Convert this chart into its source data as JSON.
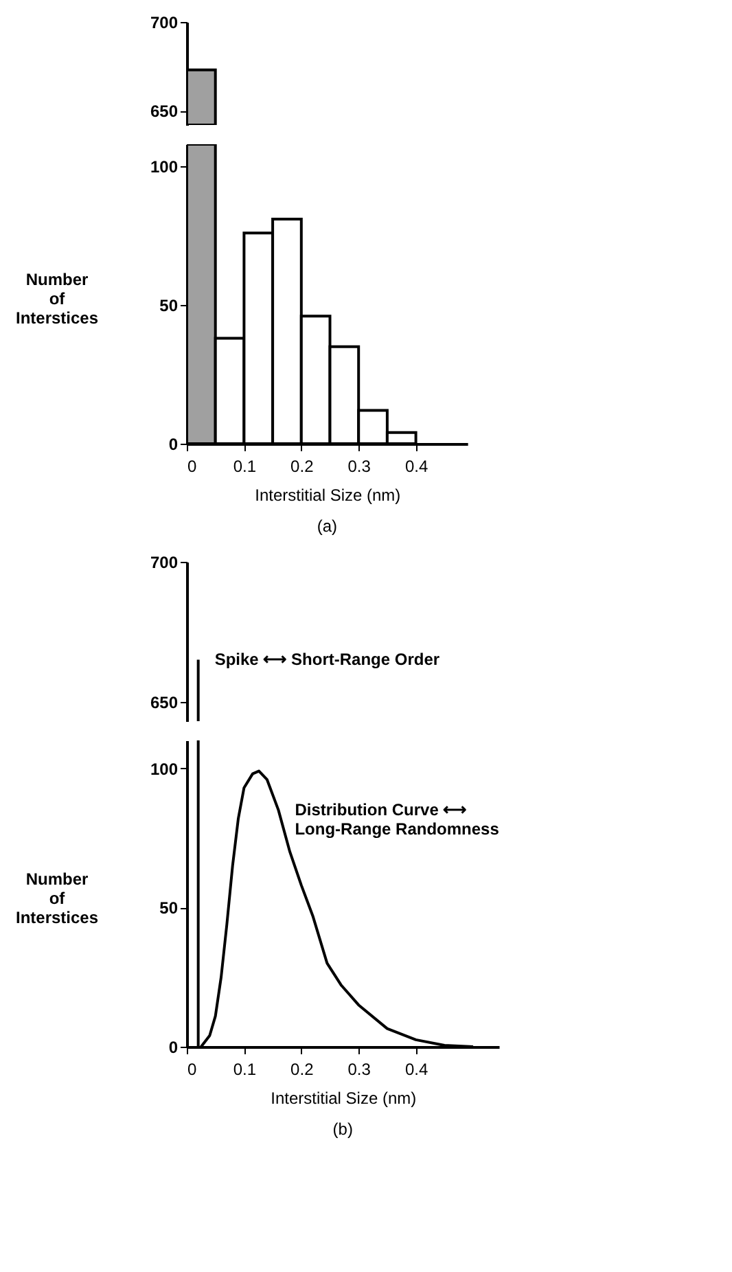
{
  "chart_data": [
    {
      "type": "histogram",
      "bins": [
        0,
        0.05
      ],
      "values": [
        673
      ],
      "colors": [
        "#a0a0a0"
      ],
      "xlim": [
        0,
        0.4
      ],
      "xticks": [
        0,
        0.1,
        0.2,
        0.3,
        0.4
      ],
      "ylim": [
        642,
        700
      ],
      "yticks": [
        650,
        700
      ],
      "tick_labels": "y"
    },
    {
      "type": "histogram",
      "bins": [
        0,
        0.05,
        0.1,
        0.15,
        0.2,
        0.25,
        0.3,
        0.35,
        0.4
      ],
      "values": [
        108,
        38,
        76,
        81,
        46,
        35,
        12,
        4
      ],
      "colors": [
        "#a0a0a0",
        "#ffffff",
        "#ffffff",
        "#ffffff",
        "#ffffff",
        "#ffffff",
        "#ffffff",
        "#ffffff"
      ],
      "xlim": [
        0,
        0.49
      ],
      "xticks": [
        0,
        0.1,
        0.2,
        0.3,
        0.4
      ],
      "ylim": [
        0,
        108
      ],
      "yticks": [
        0,
        50,
        100
      ],
      "xlabel": "Interstitial Size (nm)",
      "ylabel": "Number\nof\nInterstices",
      "title": "(a)"
    },
    {
      "type": "line",
      "series": [
        {
          "color": "#000000",
          "x": [
            0.02,
            0.02
          ],
          "values": [
            643,
            665
          ]
        }
      ],
      "xlim": [
        0,
        0.4
      ],
      "xticks": [
        0,
        0.1,
        0.2,
        0.3,
        0.4
      ],
      "ylim": [
        643,
        700
      ],
      "yticks": [
        650,
        700
      ],
      "tick_labels": "y",
      "annotations": [
        {
          "text": "Spike ⟷ Short-Range Order",
          "x": 0.02,
          "y": 665
        }
      ]
    },
    {
      "type": "line",
      "series": [
        {
          "color": "#000000",
          "x": [
            0.02,
            0.02
          ],
          "values": [
            0,
            110
          ]
        },
        {
          "color": "#000000",
          "x": [
            0.025,
            0.04,
            0.05,
            0.06,
            0.07,
            0.08,
            0.09,
            0.1,
            0.115,
            0.126,
            0.14,
            0.16,
            0.18,
            0.2,
            0.22,
            0.245,
            0.27,
            0.3,
            0.35,
            0.4,
            0.45,
            0.5
          ],
          "values": [
            0,
            4,
            11,
            25,
            44,
            65,
            82,
            93,
            98,
            99,
            96,
            85,
            70,
            58,
            47,
            30,
            22,
            15,
            6.5,
            2.5,
            0.5,
            0
          ]
        }
      ],
      "xlim": [
        0,
        0.545
      ],
      "xticks": [
        0,
        0.1,
        0.2,
        0.3,
        0.4
      ],
      "ylim": [
        0,
        110
      ],
      "yticks": [
        0,
        50,
        100
      ],
      "xlabel": "Interstitial Size (nm)",
      "ylabel": "Number\nof\nInterstices",
      "title": "(b)",
      "annotations": [
        {
          "text": "Distribution Curve ⟷\nLong-Range Randomness",
          "x": 0.16,
          "y": 85
        }
      ]
    }
  ]
}
